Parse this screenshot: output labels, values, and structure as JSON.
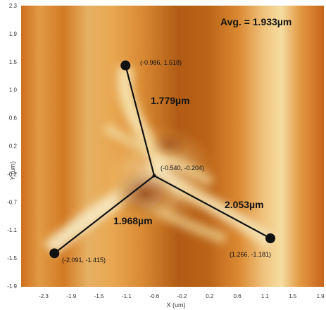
{
  "image": {
    "average_label": "Avg. = 1.933µm",
    "x_axis_label": "X (um)",
    "y_axis_label": "Y (um)",
    "x_ticks": [
      "-2.3",
      "-1.9",
      "-1.5",
      "-1.1",
      "-0.6",
      "-0.2",
      "0.2",
      "0.6",
      "1.1",
      "1.5",
      "1.9"
    ],
    "y_ticks": [
      "2.3",
      "1.9",
      "1.5",
      "1.0",
      "0.6",
      "0.2",
      "-0.2",
      "-0.7",
      "-1.1",
      "-1.5",
      "-1.9"
    ],
    "center_point": {
      "label": "(-0.540, -0.204)",
      "x": -0.54,
      "y": -0.204
    },
    "endpoints": [
      {
        "label": "(-0.986, 1.518)",
        "x": -0.986,
        "y": 1.518,
        "segment_length": "1.779µm"
      },
      {
        "label": "(-2.091, -1.415)",
        "x": -2.091,
        "y": -1.415,
        "segment_length": "1.968µm"
      },
      {
        "label": "(1.266, -1.181)",
        "x": 1.266,
        "y": -1.181,
        "segment_length": "2.053µm"
      }
    ],
    "colors": {
      "background_orange": "#d8822a",
      "dark_band": "#b25a14",
      "bright_region": "#f3e8b8",
      "marker": "#111111"
    }
  }
}
